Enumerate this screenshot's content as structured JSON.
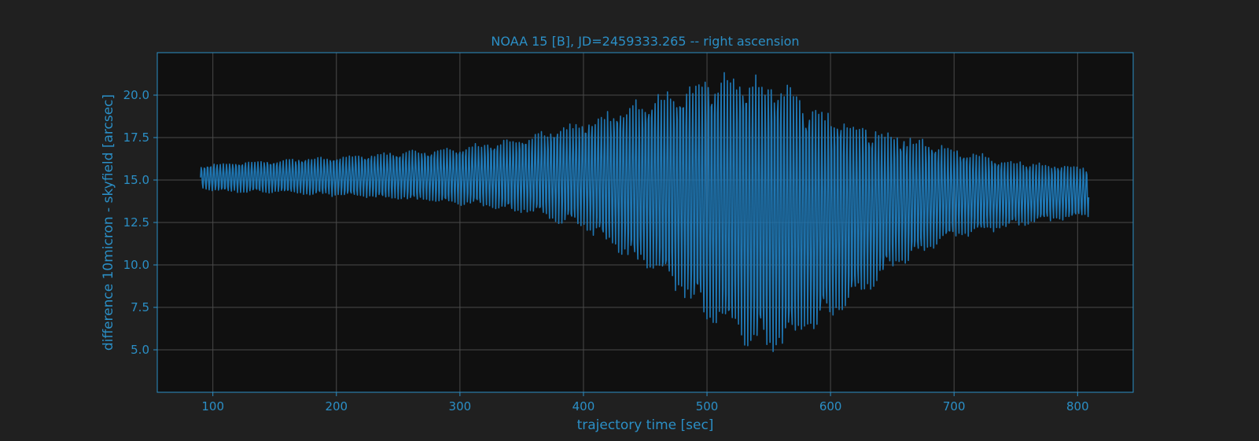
{
  "chart_data": {
    "type": "line",
    "title": "NOAA 15 [B], JD=2459333.265 -- right ascension",
    "xlabel": "trajectory time [sec]",
    "ylabel": "difference 10micron - skyfield [arcsec]",
    "xlim": [
      55,
      845
    ],
    "ylim": [
      2.5,
      22.5
    ],
    "x_ticks": [
      100,
      200,
      300,
      400,
      500,
      600,
      700,
      800
    ],
    "x_tick_labels": [
      "100",
      "200",
      "300",
      "400",
      "500",
      "600",
      "700",
      "800"
    ],
    "y_ticks": [
      5.0,
      7.5,
      10.0,
      12.5,
      15.0,
      17.5,
      20.0
    ],
    "y_tick_labels": [
      "5.0",
      "7.5",
      "10.0",
      "12.5",
      "15.0",
      "17.5",
      "20.0"
    ],
    "grid": true,
    "legend": "none",
    "series": [
      {
        "color": "#1f77b4",
        "x": [
          90,
          100,
          150,
          200,
          250,
          300,
          350,
          400,
          450,
          480,
          500,
          520,
          540,
          560,
          580,
          600,
          650,
          700,
          750,
          809
        ],
        "envelope_high": [
          15.8,
          16.0,
          16.2,
          16.4,
          16.7,
          17.0,
          17.6,
          18.6,
          20.0,
          20.8,
          21.4,
          21.6,
          21.5,
          21.0,
          20.0,
          19.2,
          18.0,
          17.0,
          16.2,
          15.8
        ],
        "envelope_low": [
          14.5,
          14.3,
          14.2,
          14.0,
          13.8,
          13.5,
          13.0,
          12.0,
          9.5,
          8.0,
          6.5,
          5.5,
          4.5,
          4.8,
          5.5,
          6.5,
          9.5,
          11.5,
          12.2,
          12.8
        ],
        "sample_period_sec": 2.55
      }
    ]
  },
  "colors": {
    "figure_background": "#202020",
    "axes_background": "#101010",
    "axis_color": "#2b8fc6",
    "grid_color": "#4a4a4a",
    "line_color": "#1f77b4"
  }
}
